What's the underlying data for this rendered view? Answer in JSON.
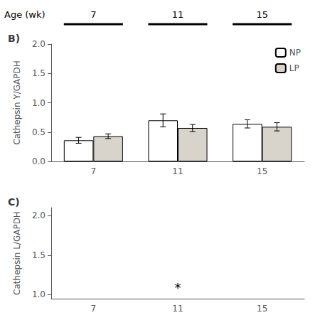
{
  "chart_data": [
    {
      "type": "bar",
      "title": "B)",
      "categories": [
        "7",
        "11",
        "15"
      ],
      "series": [
        {
          "name": "NP",
          "color": "#ffffff",
          "values": [
            0.36,
            0.7,
            0.64
          ],
          "errors": [
            0.05,
            0.11,
            0.07
          ]
        },
        {
          "name": "LP",
          "color": "#d8d4cc",
          "values": [
            0.43,
            0.57,
            0.59
          ],
          "errors": [
            0.04,
            0.06,
            0.07
          ]
        }
      ],
      "ylabel": "Cathepsin Y/GAPDH",
      "ylim": [
        0.0,
        2.0
      ],
      "yticks": [
        {
          "value": 0,
          "label": "0.0"
        },
        0.5,
        {
          "value": 1,
          "label": "1.0"
        },
        1.5,
        {
          "value": 2,
          "label": "2.0"
        }
      ],
      "legend": "upper right",
      "grid": false,
      "annotations": [
        {
          "text": "Age (wk)"
        },
        {
          "text": "7",
          "x": "7"
        },
        {
          "text": "11",
          "x": "11"
        },
        {
          "text": "15",
          "x": "15"
        }
      ]
    },
    {
      "type": "bar",
      "title": "C)",
      "categories": [
        "7",
        "11",
        "15"
      ],
      "series": [],
      "ylabel": "Cathepsin L/GAPDH",
      "ylim": [
        0.95,
        2.1
      ],
      "yticks": [
        {
          "value": 1,
          "label": "1.0"
        },
        1.5,
        {
          "value": 2,
          "label": "2.0"
        }
      ],
      "grid": false,
      "annotations": [
        {
          "text": "*",
          "x": "11",
          "y": 1.01
        }
      ]
    }
  ]
}
